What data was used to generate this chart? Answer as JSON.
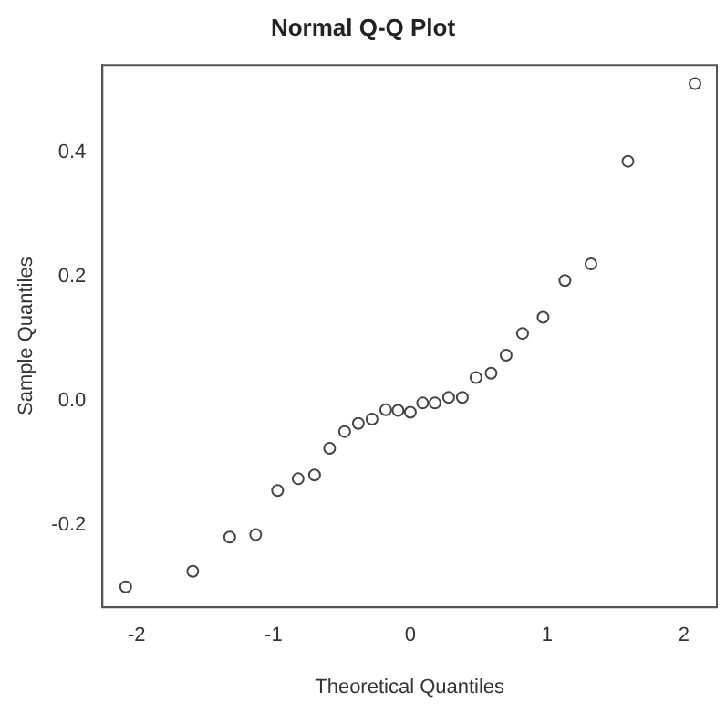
{
  "chart_data": {
    "type": "scatter",
    "title": "Normal Q-Q Plot",
    "xlabel": "Theoretical Quantiles",
    "ylabel": "Sample Quantiles",
    "x": [
      -2.08,
      -1.59,
      -1.32,
      -1.13,
      -0.97,
      -0.82,
      -0.7,
      -0.59,
      -0.48,
      -0.38,
      -0.28,
      -0.18,
      -0.09,
      0,
      0.09,
      0.18,
      0.28,
      0.38,
      0.48,
      0.59,
      0.7,
      0.82,
      0.97,
      1.13,
      1.32,
      1.59,
      2.08
    ],
    "values": [
      -0.3,
      -0.275,
      -0.22,
      -0.216,
      -0.145,
      -0.126,
      -0.12,
      -0.077,
      -0.05,
      -0.037,
      -0.03,
      -0.015,
      -0.016,
      -0.019,
      -0.004,
      -0.004,
      0.005,
      0.005,
      0.037,
      0.044,
      0.073,
      0.108,
      0.134,
      0.193,
      0.22,
      0.385,
      0.51
    ],
    "color": "#444444",
    "marker": "circle",
    "grid": false,
    "legend": false,
    "xlim": [
      -2.25,
      2.24
    ],
    "xticks": [
      -2,
      -1,
      0,
      1,
      2
    ],
    "ylim": [
      -0.333,
      0.54
    ],
    "yticks": [
      -0.2,
      {
        "value": 0,
        "label": "0.0"
      },
      0.2,
      0.4
    ]
  }
}
